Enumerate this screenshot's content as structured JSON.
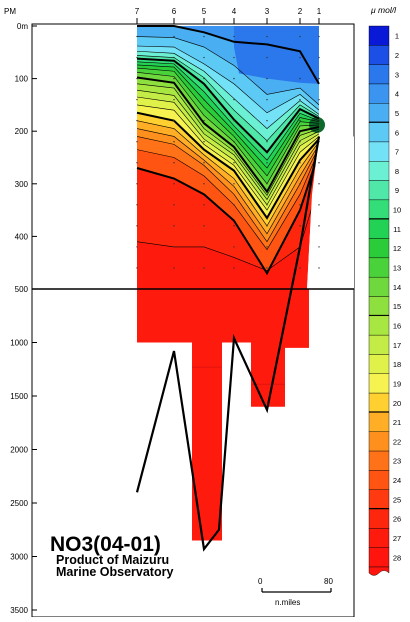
{
  "chart_data": {
    "type": "heatmap",
    "title": "NO3(04-01)",
    "subtitle": [
      "Product of Maizuru",
      "Marine Observatory"
    ],
    "xlabel": "",
    "ylabel": "",
    "station_axis_label": "PM",
    "stations": [
      "7",
      "6",
      "5",
      "4",
      "3",
      "2",
      "1"
    ],
    "station_pos": [
      0,
      37,
      67,
      97,
      130,
      163,
      182
    ],
    "upper_depth": {
      "ticks": [
        "0m",
        "100",
        "200",
        "300",
        "400",
        "500"
      ],
      "values": [
        0,
        100,
        200,
        300,
        400,
        500
      ]
    },
    "lower_depth": {
      "ticks": [
        "1000",
        "1500",
        "2000",
        "2500",
        "3000",
        "3500"
      ],
      "values": [
        1000,
        1500,
        2000,
        2500,
        3000,
        3500
      ]
    },
    "colorbar": {
      "unit": "μ mol/l",
      "levels": [
        "1",
        "2",
        "3",
        "4",
        "5",
        "6",
        "7",
        "8",
        "9",
        "10",
        "11",
        "12",
        "13",
        "14",
        "15",
        "16",
        "17",
        "18",
        "19",
        "20",
        "21",
        "22",
        "23",
        "24",
        "25",
        "26",
        "27",
        "28"
      ],
      "colors": [
        "#0a18d8",
        "#1b4fe6",
        "#2a78ec",
        "#3a94f0",
        "#49aef2",
        "#5ccaf4",
        "#74e2f6",
        "#6cf0d4",
        "#4fe8a8",
        "#33de78",
        "#22d255",
        "#2acc3a",
        "#4ad23a",
        "#6ed83c",
        "#8ee03e",
        "#a8e642",
        "#c4ec46",
        "#e0f24a",
        "#f6f250",
        "#ffd030",
        "#ffae26",
        "#ff901e",
        "#ff7218",
        "#ff5412",
        "#ff3a10",
        "#ff260e",
        "#ff1a0e",
        "#ff140e"
      ],
      "bold_levels": [
        "5",
        "10",
        "15",
        "20",
        "25"
      ]
    },
    "bottom_depth_profile": [
      {
        "station": "7",
        "depth": 2400
      },
      {
        "station": "6",
        "depth": 1080
      },
      {
        "station": "5",
        "depth": 2930
      },
      {
        "station": "5-4",
        "depth": 2750
      },
      {
        "station": "4",
        "depth": 960
      },
      {
        "station": "3",
        "depth": 1630
      },
      {
        "station": "2",
        "depth": 420
      },
      {
        "station": "1",
        "depth": 210
      }
    ],
    "scale": {
      "start": "0",
      "end": "80",
      "label": "n.miles"
    }
  }
}
